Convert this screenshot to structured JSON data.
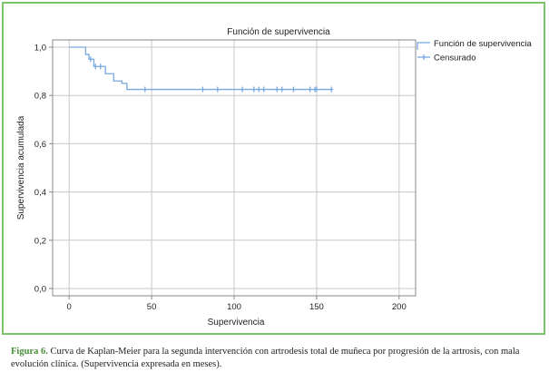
{
  "chart_data": {
    "type": "line",
    "title": "Función de supervivencia",
    "xlabel": "Supervivencia",
    "ylabel": "Supervivencia acumulada",
    "xlim": [
      -10,
      210
    ],
    "ylim": [
      -0.03,
      1.03
    ],
    "x_ticks": [
      0,
      50,
      100,
      150,
      200
    ],
    "x_tick_labels": [
      "0",
      "50",
      "100",
      "150",
      "200"
    ],
    "y_ticks": [
      0,
      0.2,
      0.4,
      0.6,
      0.8,
      1.0
    ],
    "y_tick_labels": [
      "0,0",
      "0,2",
      "0,4",
      "0,6",
      "0,8",
      "1,0"
    ],
    "grid": true,
    "legend_position": "top-right",
    "legend": [
      "Función de supervivencia",
      "Censurado"
    ],
    "series": [
      {
        "name": "Función de supervivencia",
        "kind": "step",
        "x": [
          0,
          10,
          12,
          15,
          22,
          27,
          32,
          35,
          160
        ],
        "y": [
          1.0,
          0.97,
          0.95,
          0.92,
          0.89,
          0.86,
          0.85,
          0.825,
          0.825
        ]
      },
      {
        "name": "Censurado",
        "kind": "censor_marks",
        "x": [
          13,
          16,
          19,
          46,
          81,
          90,
          105,
          112,
          115,
          118,
          126,
          129,
          136,
          146,
          149,
          150,
          159
        ],
        "y": [
          0.95,
          0.92,
          0.92,
          0.825,
          0.825,
          0.825,
          0.825,
          0.825,
          0.825,
          0.825,
          0.825,
          0.825,
          0.825,
          0.825,
          0.825,
          0.825,
          0.825
        ]
      }
    ]
  },
  "colors": {
    "line": "#78a8e0",
    "grid": "#c8c8c8",
    "axis": "#888888",
    "border": "#7cc46c",
    "caption_label": "#4a8f3a"
  },
  "caption": {
    "label": "Figura 6.",
    "text": " Curva de Kaplan-Meier para la segunda intervención con artrodesis total de muñeca por progresión de la artrosis, con mala evolución clínica. (Supervivencia expresada en meses)."
  }
}
